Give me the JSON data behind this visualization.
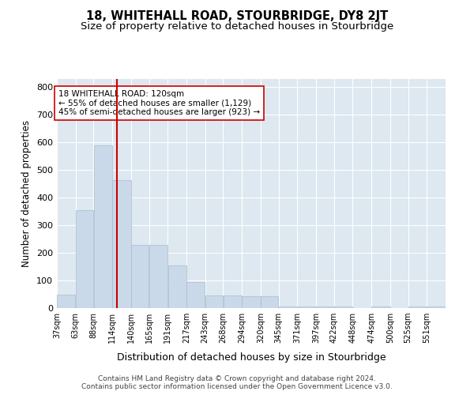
{
  "title1": "18, WHITEHALL ROAD, STOURBRIDGE, DY8 2JT",
  "title2": "Size of property relative to detached houses in Stourbridge",
  "xlabel": "Distribution of detached houses by size in Stourbridge",
  "ylabel": "Number of detached properties",
  "bar_color": "#c9d9e9",
  "bar_edge_color": "#aabbcc",
  "bg_color": "#dde8f0",
  "vline_x": 120,
  "vline_color": "#cc0000",
  "annotation_text": "18 WHITEHALL ROAD: 120sqm\n← 55% of detached houses are smaller (1,129)\n45% of semi-detached houses are larger (923) →",
  "annotation_box_color": "#ffffff",
  "annotation_edge_color": "#cc0000",
  "categories": [
    "37sqm",
    "63sqm",
    "88sqm",
    "114sqm",
    "140sqm",
    "165sqm",
    "191sqm",
    "217sqm",
    "243sqm",
    "268sqm",
    "294sqm",
    "320sqm",
    "345sqm",
    "371sqm",
    "397sqm",
    "422sqm",
    "448sqm",
    "474sqm",
    "500sqm",
    "525sqm",
    "551sqm"
  ],
  "bin_edges": [
    37,
    63,
    88,
    114,
    140,
    165,
    191,
    217,
    243,
    268,
    294,
    320,
    345,
    371,
    397,
    422,
    448,
    474,
    500,
    525,
    551,
    577
  ],
  "values": [
    50,
    355,
    590,
    465,
    228,
    228,
    155,
    95,
    47,
    47,
    42,
    42,
    5,
    5,
    5,
    5,
    0,
    5,
    0,
    5,
    5
  ],
  "ylim": [
    0,
    830
  ],
  "yticks": [
    0,
    100,
    200,
    300,
    400,
    500,
    600,
    700,
    800
  ],
  "footer": "Contains HM Land Registry data © Crown copyright and database right 2024.\nContains public sector information licensed under the Open Government Licence v3.0.",
  "title_fontsize": 10.5,
  "subtitle_fontsize": 9.5
}
